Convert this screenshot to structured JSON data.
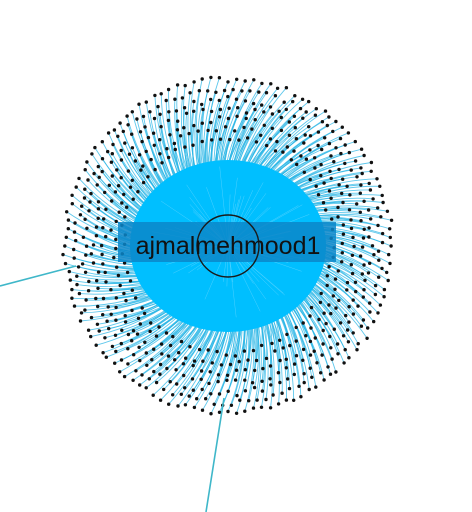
{
  "graph": {
    "center_label": "ajmalmehmood1",
    "colors": {
      "background": "#ffffff",
      "hub_fill": "#00bfff",
      "edge": "#29b6e6",
      "edge_light": "#7fdcff",
      "label_band": "#0a86c9",
      "node": "#111111",
      "outer_edge": "#3fb7c9"
    }
  }
}
